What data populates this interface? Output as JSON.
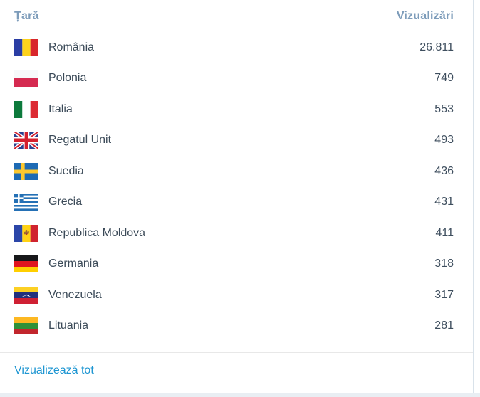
{
  "table": {
    "country_header": "Țară",
    "views_header": "Vizualizări",
    "rows": [
      {
        "country": "România",
        "views": "26.811",
        "flag": "ro"
      },
      {
        "country": "Polonia",
        "views": "749",
        "flag": "pl"
      },
      {
        "country": "Italia",
        "views": "553",
        "flag": "it"
      },
      {
        "country": "Regatul Unit",
        "views": "493",
        "flag": "gb"
      },
      {
        "country": "Suedia",
        "views": "436",
        "flag": "se"
      },
      {
        "country": "Grecia",
        "views": "431",
        "flag": "gr"
      },
      {
        "country": "Republica Moldova",
        "views": "411",
        "flag": "md"
      },
      {
        "country": "Germania",
        "views": "318",
        "flag": "de"
      },
      {
        "country": "Venezuela",
        "views": "317",
        "flag": "ve"
      },
      {
        "country": "Lituania",
        "views": "281",
        "flag": "lt"
      }
    ]
  },
  "footer": {
    "view_all_label": "Vizualizează tot"
  },
  "colors": {
    "header_text": "#7d9cba",
    "row_text": "#3b4a58",
    "views_text": "#3e4e5e",
    "link": "#1e96d2",
    "card_border": "#d9e2ea",
    "separator": "#e8e8e8",
    "page_strip": "#e9eef3"
  }
}
